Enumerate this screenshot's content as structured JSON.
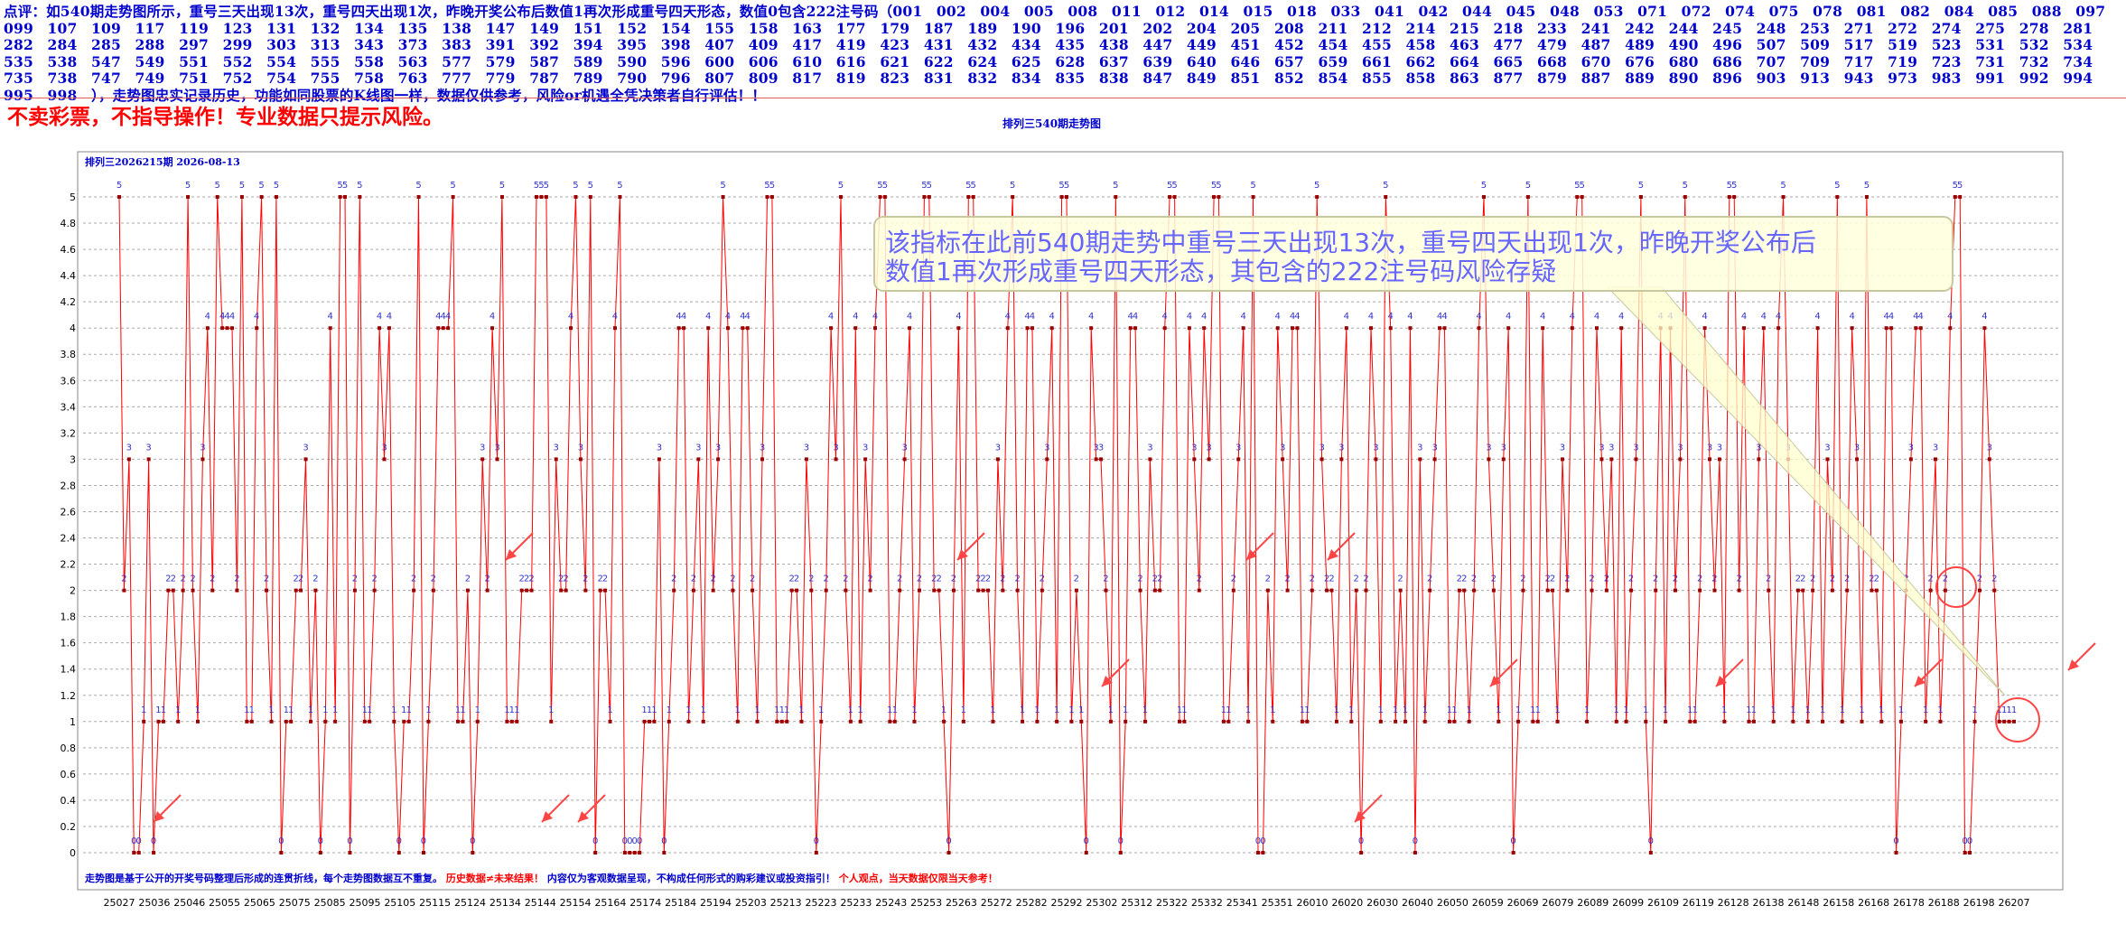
{
  "header": {
    "intro": "点评：如540期走势图所示，重号三天出现13次，重号四天出现1次，昨晚开奖公布后数值1再次形成重号四天形态，数值0包含222注号码（",
    "codes": [
      "001",
      "002",
      "004",
      "005",
      "008",
      "011",
      "012",
      "014",
      "015",
      "018",
      "033",
      "041",
      "042",
      "044",
      "045",
      "048",
      "053",
      "071",
      "072",
      "074",
      "075",
      "078",
      "081",
      "082",
      "084",
      "085",
      "088",
      "097",
      "099",
      "107",
      "109",
      "117",
      "119",
      "123",
      "131",
      "132",
      "134",
      "135",
      "138",
      "147",
      "149",
      "151",
      "152",
      "154",
      "155",
      "158",
      "163",
      "177",
      "179",
      "187",
      "189",
      "190",
      "196",
      "201",
      "202",
      "204",
      "205",
      "208",
      "211",
      "212",
      "214",
      "215",
      "218",
      "233",
      "241",
      "242",
      "244",
      "245",
      "248",
      "253",
      "271",
      "272",
      "274",
      "275",
      "278",
      "281",
      "282",
      "284",
      "285",
      "288",
      "297",
      "299",
      "303",
      "313",
      "343",
      "373",
      "383",
      "391",
      "392",
      "394",
      "395",
      "398",
      "407",
      "409",
      "417",
      "419",
      "423",
      "431",
      "432",
      "434",
      "435",
      "438",
      "447",
      "449",
      "451",
      "452",
      "454",
      "455",
      "458",
      "463",
      "477",
      "479",
      "487",
      "489",
      "490",
      "496",
      "507",
      "509",
      "517",
      "519",
      "523",
      "531",
      "532",
      "534",
      "535",
      "538",
      "547",
      "549",
      "551",
      "552",
      "554",
      "555",
      "558",
      "563",
      "577",
      "579",
      "587",
      "589",
      "590",
      "596",
      "600",
      "606",
      "610",
      "616",
      "621",
      "622",
      "624",
      "625",
      "628",
      "637",
      "639",
      "640",
      "646",
      "657",
      "659",
      "661",
      "662",
      "664",
      "665",
      "668",
      "670",
      "676",
      "680",
      "686",
      "707",
      "709",
      "717",
      "719",
      "723",
      "731",
      "732",
      "734",
      "735",
      "738",
      "747",
      "749",
      "751",
      "752",
      "754",
      "755",
      "758",
      "763",
      "777",
      "779",
      "787",
      "789",
      "790",
      "796",
      "807",
      "809",
      "817",
      "819",
      "823",
      "831",
      "832",
      "834",
      "835",
      "838",
      "847",
      "849",
      "851",
      "852",
      "854",
      "855",
      "858",
      "863",
      "877",
      "879",
      "887",
      "889",
      "890",
      "896",
      "903",
      "913",
      "943",
      "973",
      "983",
      "991",
      "992",
      "994",
      "995",
      "998"
    ],
    "outro": "），走势图忠实记录历史，功能如同股票的K线图一样，数据仅供参考，风险or机遇全凭决策者自行评估！！"
  },
  "warning": "不卖彩票，不指导操作！专业数据只提示风险。",
  "chart_title": "排列三540期走势图",
  "chart_data": {
    "type": "line",
    "inner_title": "排列三2026215期  2026-08-13",
    "ylim": [
      0,
      5
    ],
    "yticks": [
      "0",
      "0.2",
      "0.4",
      "0.6",
      "0.8",
      "1",
      "1.2",
      "1.4",
      "1.6",
      "1.8",
      "2",
      "2.2",
      "2.4",
      "2.6",
      "2.8",
      "3",
      "3.2",
      "3.4",
      "3.6",
      "3.8",
      "4",
      "4.2",
      "4.4",
      "4.6",
      "4.8",
      "5"
    ],
    "xticks": [
      "25027",
      "25036",
      "25046",
      "25055",
      "25065",
      "25075",
      "25085",
      "25095",
      "25105",
      "25115",
      "25124",
      "25134",
      "25144",
      "25154",
      "25164",
      "25174",
      "25184",
      "25194",
      "25203",
      "25213",
      "25223",
      "25233",
      "25243",
      "25253",
      "25263",
      "25272",
      "25282",
      "25292",
      "25302",
      "25312",
      "25322",
      "25332",
      "25341",
      "25351",
      "26010",
      "26020",
      "26030",
      "26040",
      "26050",
      "26059",
      "26069",
      "26079",
      "26089",
      "26099",
      "26109",
      "26119",
      "26128",
      "26138",
      "26148",
      "26158",
      "26168",
      "26178",
      "26188",
      "26198",
      "26207"
    ],
    "values": [
      5,
      2,
      3,
      0,
      0,
      1,
      3,
      0,
      1,
      1,
      2,
      2,
      1,
      2,
      5,
      2,
      1,
      3,
      4,
      2,
      5,
      4,
      4,
      4,
      2,
      5,
      1,
      1,
      4,
      5,
      2,
      1,
      5,
      0,
      1,
      1,
      2,
      2,
      3,
      1,
      2,
      0,
      1,
      4,
      1,
      5,
      5,
      0,
      2,
      5,
      1,
      1,
      2,
      4,
      3,
      4,
      1,
      0,
      1,
      1,
      2,
      5,
      0,
      1,
      2,
      4,
      4,
      4,
      5,
      1,
      1,
      2,
      0,
      1,
      3,
      2,
      4,
      3,
      5,
      1,
      1,
      1,
      2,
      2,
      2,
      5,
      5,
      5,
      1,
      3,
      2,
      2,
      4,
      5,
      3,
      2,
      5,
      0,
      2,
      2,
      1,
      4,
      5,
      0,
      0,
      0,
      0,
      1,
      1,
      1,
      3,
      0,
      1,
      2,
      4,
      4,
      1,
      2,
      3,
      1,
      4,
      2,
      3,
      5,
      4,
      2,
      1,
      4,
      4,
      2,
      1,
      3,
      5,
      5,
      1,
      1,
      1,
      2,
      2,
      1,
      3,
      2,
      0,
      1,
      2,
      4,
      3,
      5,
      2,
      1,
      4,
      1,
      3,
      2,
      4,
      5,
      5,
      1,
      1,
      2,
      3,
      4,
      1,
      2,
      5,
      5,
      2,
      2,
      1,
      0,
      2,
      4,
      1,
      5,
      5,
      2,
      2,
      2,
      1,
      3,
      2,
      4,
      5,
      2,
      1,
      4,
      4,
      1,
      2,
      3,
      4,
      1,
      5,
      5,
      1,
      2,
      1,
      0,
      4,
      3,
      3,
      2,
      1,
      5,
      0,
      1,
      4,
      4,
      2,
      1,
      3,
      2,
      2,
      4,
      5,
      5,
      1,
      1,
      4,
      3,
      2,
      4,
      3,
      5,
      5,
      1,
      1,
      2,
      3,
      4,
      1,
      5,
      0,
      0,
      2,
      1,
      4,
      3,
      2,
      4,
      4,
      1,
      1,
      2,
      5,
      3,
      2,
      2,
      1,
      3,
      4,
      1,
      2,
      0,
      2,
      4,
      3,
      1,
      5,
      4,
      1,
      2,
      1,
      4,
      0,
      3,
      1,
      2,
      3,
      4,
      4,
      1,
      1,
      2,
      2,
      1,
      2,
      4,
      5,
      3,
      2,
      1,
      3,
      4,
      0,
      1,
      2,
      5,
      1,
      1,
      4,
      2,
      2,
      1,
      3,
      2,
      4,
      5,
      5,
      1,
      2,
      4,
      3,
      2,
      3,
      1,
      4,
      1,
      2,
      3,
      5,
      1,
      0,
      2,
      4,
      1,
      4,
      2,
      3,
      5,
      1,
      1,
      2,
      4,
      3,
      2,
      3,
      1,
      5,
      5,
      2,
      4,
      1,
      1,
      3,
      4,
      2,
      1,
      4,
      5,
      3,
      1,
      2,
      2,
      1,
      2,
      4,
      1,
      3,
      2,
      5,
      1,
      2,
      4,
      3,
      1,
      5,
      2,
      2,
      1,
      4,
      4,
      0,
      1,
      2,
      3,
      4,
      4,
      1,
      2,
      3,
      1,
      2,
      4,
      5,
      5,
      0,
      0,
      1,
      2,
      4,
      3,
      2,
      1,
      1,
      1,
      1
    ],
    "annotation": "该指标在此前540期走势中重号三天出现13次，重号四天出现1次，昨晚开奖公布后数值1再次形成重号四天形态，其包含的222注号码风险存疑"
  },
  "colors": {
    "line": "#ff0000",
    "marker": "#990000",
    "label": "#3333cc",
    "grid": "#aaaaaa",
    "header": "#0000cc",
    "footer": "#0000cc",
    "footer_red": "#ff0000"
  },
  "footer": {
    "a": "走势图是基于公开的开奖号码整理后形成的连贯折线，每个走势图数据互不重复。",
    "b": "历史数据≠未来结果！",
    "c": "内容仅为客观数据呈现，不构成任何形式的购彩建议或投资指引！",
    "d": "个人观点，当天数据仅限当天参考！"
  }
}
